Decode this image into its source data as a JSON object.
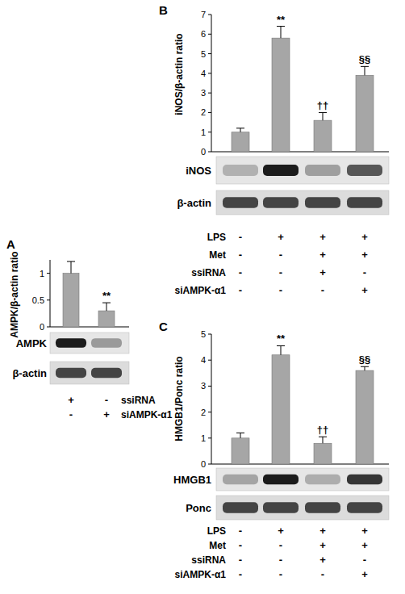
{
  "chart_data": [
    {
      "type": "bar",
      "panel": "A",
      "y_label": "AMPK/β-actin ratio",
      "categories": [
        null,
        null
      ],
      "values": [
        1,
        0.3
      ],
      "errors": [
        0.22,
        0.15
      ],
      "color": "#a6a6a6",
      "ylim": [
        0,
        1.25
      ],
      "yticks": [
        0,
        0.5,
        1
      ],
      "grid": false,
      "annotations": [
        null,
        "**"
      ],
      "blots": [
        "AMPK",
        "β-actin"
      ],
      "treatments": [
        {
          "label": "ssiRNA",
          "signs": [
            "+",
            "-"
          ]
        },
        {
          "label": "siAMPK-α1",
          "signs": [
            "-",
            "+"
          ]
        }
      ]
    },
    {
      "type": "bar",
      "panel": "B",
      "y_label": "iNOS/β-actin ratio",
      "categories": [
        null,
        null,
        null,
        null
      ],
      "values": [
        1,
        5.8,
        1.6,
        3.9
      ],
      "errors": [
        0.2,
        0.6,
        0.4,
        0.45
      ],
      "color": "#a6a6a6",
      "ylim": [
        0,
        7
      ],
      "yticks": [
        0,
        1,
        2,
        3,
        4,
        5,
        6,
        7
      ],
      "grid": false,
      "annotations": [
        null,
        "**",
        "††",
        "§§"
      ],
      "blots": [
        "iNOS",
        "β-actin"
      ],
      "treatments": [
        {
          "label": "LPS",
          "signs": [
            "-",
            "+",
            "+",
            "+"
          ]
        },
        {
          "label": "Met",
          "signs": [
            "-",
            "-",
            "+",
            "+"
          ]
        },
        {
          "label": "ssiRNA",
          "signs": [
            "-",
            "-",
            "+",
            "-"
          ]
        },
        {
          "label": "siAMPK-α1",
          "signs": [
            "-",
            "-",
            "-",
            "+"
          ]
        }
      ]
    },
    {
      "type": "bar",
      "panel": "C",
      "y_label": "HMGB1/Ponc ratio",
      "categories": [
        null,
        null,
        null,
        null
      ],
      "values": [
        1,
        4.2,
        0.8,
        3.6
      ],
      "errors": [
        0.2,
        0.35,
        0.25,
        0.15
      ],
      "color": "#a6a6a6",
      "ylim": [
        0,
        5
      ],
      "yticks": [
        0,
        1,
        2,
        3,
        4,
        5
      ],
      "grid": false,
      "annotations": [
        null,
        "**",
        "††",
        "§§"
      ],
      "blots": [
        "HMGB1",
        "Ponc"
      ],
      "treatments": [
        {
          "label": "LPS",
          "signs": [
            "-",
            "+",
            "+",
            "+"
          ]
        },
        {
          "label": "Met",
          "signs": [
            "-",
            "-",
            "+",
            "+"
          ]
        },
        {
          "label": "ssiRNA",
          "signs": [
            "-",
            "-",
            "+",
            "-"
          ]
        },
        {
          "label": "siAMPK-α1",
          "signs": [
            "-",
            "-",
            "-",
            "+"
          ]
        }
      ]
    }
  ]
}
